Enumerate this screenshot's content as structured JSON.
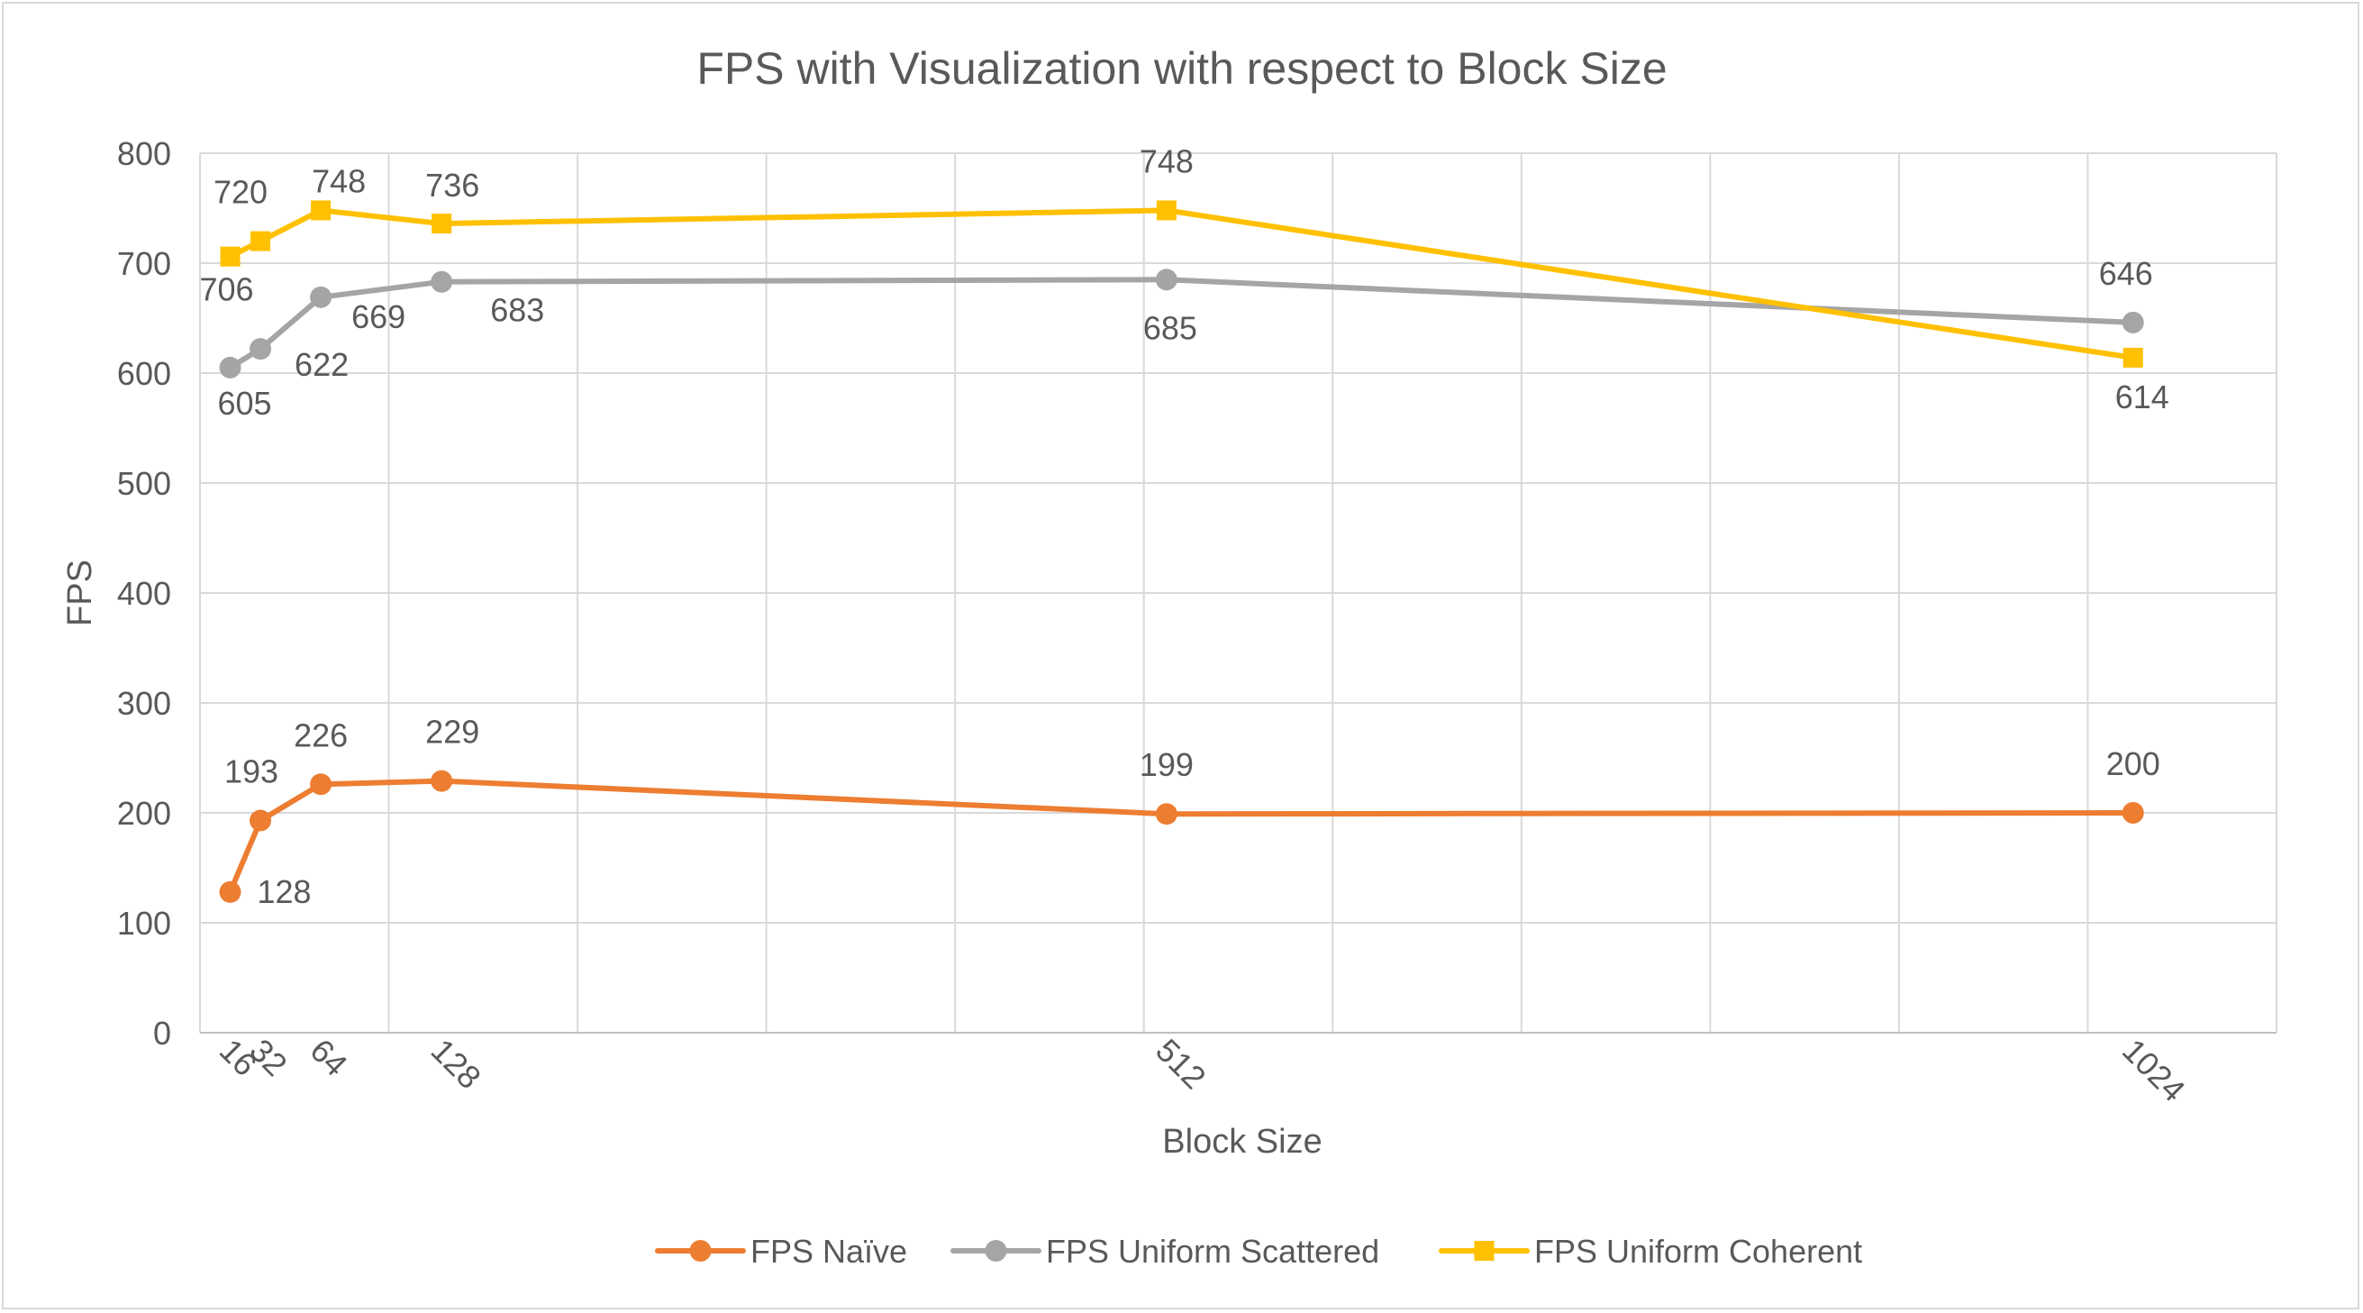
{
  "chart_data": {
    "type": "line",
    "title": "FPS with Visualization with respect to Block Size",
    "xlabel": "Block Size",
    "ylabel": "FPS",
    "x": [
      16,
      32,
      64,
      128,
      512,
      1024
    ],
    "x_tick_labels": [
      "16",
      "32",
      "64",
      "128",
      "512",
      "1024"
    ],
    "xlim": [
      0,
      1100
    ],
    "ylim": [
      0,
      800
    ],
    "y_ticks": [
      0,
      100,
      200,
      300,
      400,
      500,
      600,
      700,
      800
    ],
    "x_gridlines": [
      100,
      200,
      300,
      400,
      500,
      600,
      700,
      800,
      900,
      1000,
      1100
    ],
    "grid": true,
    "legend_position": "bottom",
    "series": [
      {
        "name": "FPS Naïve",
        "color": "#ed7d31",
        "marker": "circle",
        "values": [
          128,
          193,
          226,
          229,
          199,
          200
        ]
      },
      {
        "name": "FPS Uniform Scattered",
        "color": "#a5a5a5",
        "marker": "circle",
        "values": [
          605,
          622,
          669,
          683,
          685,
          646
        ]
      },
      {
        "name": "FPS Uniform Coherent",
        "color": "#ffc000",
        "marker": "square",
        "values": [
          706,
          720,
          748,
          736,
          748,
          614
        ]
      }
    ]
  }
}
